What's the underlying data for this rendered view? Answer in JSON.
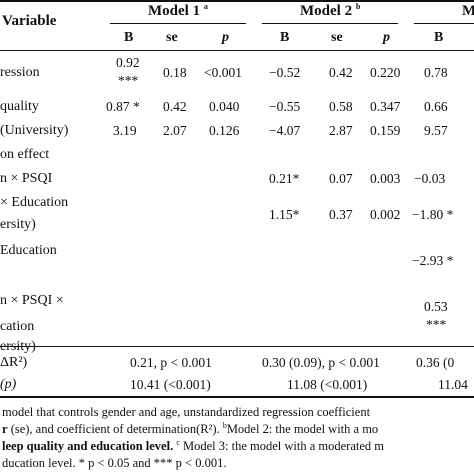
{
  "header": {
    "variable": "Variable",
    "model1": "Model 1",
    "model1_sup": "a",
    "model2": "Model 2",
    "model2_sup": "b",
    "model3": "M"
  },
  "subheader": {
    "m1": [
      "B",
      "se",
      "p"
    ],
    "m2": [
      "B",
      "se",
      "p"
    ],
    "m3": [
      "B"
    ]
  },
  "rows": [
    {
      "label": "ression",
      "m1": [
        "0.92",
        "0.18",
        "<0.001"
      ],
      "m1_extra": "***",
      "m2": [
        "−0.52",
        "0.42",
        "0.220"
      ],
      "m3": [
        "0.78"
      ]
    },
    {
      "label": "quality",
      "m1": [
        "0.87 *",
        "0.42",
        "0.040"
      ],
      "m2": [
        "−0.55",
        "0.58",
        "0.347"
      ],
      "m3": [
        "0.66"
      ]
    },
    {
      "label": "(University)",
      "m1": [
        "3.19",
        "2.07",
        "0.126"
      ],
      "m2": [
        "−4.07",
        "2.87",
        "0.159"
      ],
      "m3": [
        "9.57"
      ]
    },
    {
      "label": "on effect",
      "m1": [
        "",
        "",
        ""
      ],
      "m2": [
        "",
        "",
        ""
      ],
      "m3": [
        ""
      ]
    },
    {
      "label": "n × PSQI",
      "m1": [
        "",
        "",
        ""
      ],
      "m2": [
        "0.21*",
        "0.07",
        "0.003"
      ],
      "m3": [
        "−0.03"
      ]
    },
    {
      "label": "× Education",
      "m1": [
        "",
        "",
        ""
      ],
      "m2": [
        "1.15*",
        "0.37",
        "0.002"
      ],
      "m3": [
        "−1.80 *"
      ]
    },
    {
      "label": "Education",
      "m1": [
        "",
        "",
        ""
      ],
      "m2": [
        "",
        "",
        ""
      ],
      "m3": [
        "−2.93 *"
      ]
    },
    {
      "label": "n × PSQI ×",
      "m1": [
        "",
        "",
        ""
      ],
      "m2": [
        "",
        "",
        ""
      ],
      "m3": [
        "0.53"
      ],
      "m3_extra": "***"
    }
  ],
  "row_cont": [
    "ersity)",
    "cation",
    "ersity)"
  ],
  "stats": [
    {
      "label": "ΔR²)",
      "m1": "0.21, p < 0.001",
      "m2": "0.30 (0.09), p < 0.001",
      "m3": "0.36 (0"
    },
    {
      "label": "(p)",
      "m1": "10.41 (<0.001)",
      "m2": "11.08 (<0.001)",
      "m3": "11.04"
    }
  ],
  "footnote": {
    "line1": "model that controls gender and age, unstandardized regression coefficient",
    "line2a": "r",
    "line2b": " (se), and coefficient of determination(R²). ",
    "line2c": "Model 2: the model with a mo",
    "line2c_sup": "b",
    "line3a": "leep quality and education level. ",
    "line3_sup": "c",
    "line3b": " Model 3: the model with a moderated m",
    "line4": "ducation level. * p < 0.05 and *** p < 0.001."
  }
}
